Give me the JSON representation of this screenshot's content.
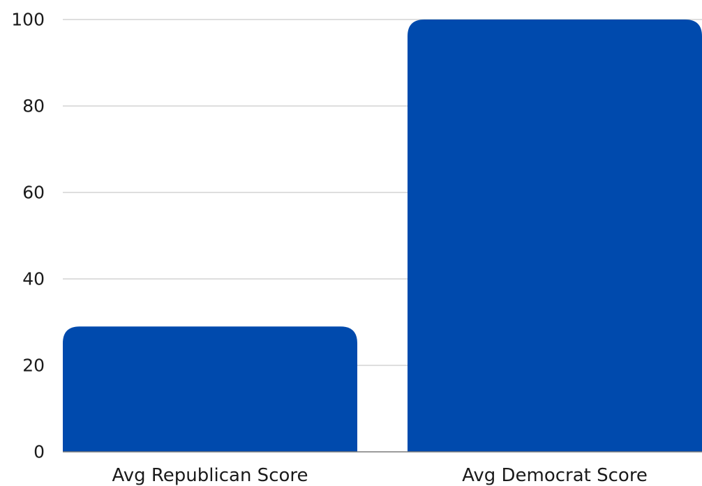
{
  "chart_data": {
    "type": "bar",
    "categories": [
      "Avg Republican Score",
      "Avg Democrat Score"
    ],
    "values": [
      29,
      100
    ],
    "title": "",
    "xlabel": "",
    "ylabel": "",
    "ylim": [
      0,
      100
    ],
    "yticks": [
      0,
      20,
      40,
      60,
      80,
      100
    ],
    "grid": true,
    "legend": "none",
    "bar_color": "#004AAD",
    "grid_color": "#C9C9C9",
    "baseline_color": "#7A7A7A",
    "text_color": "#1A1A1A"
  }
}
